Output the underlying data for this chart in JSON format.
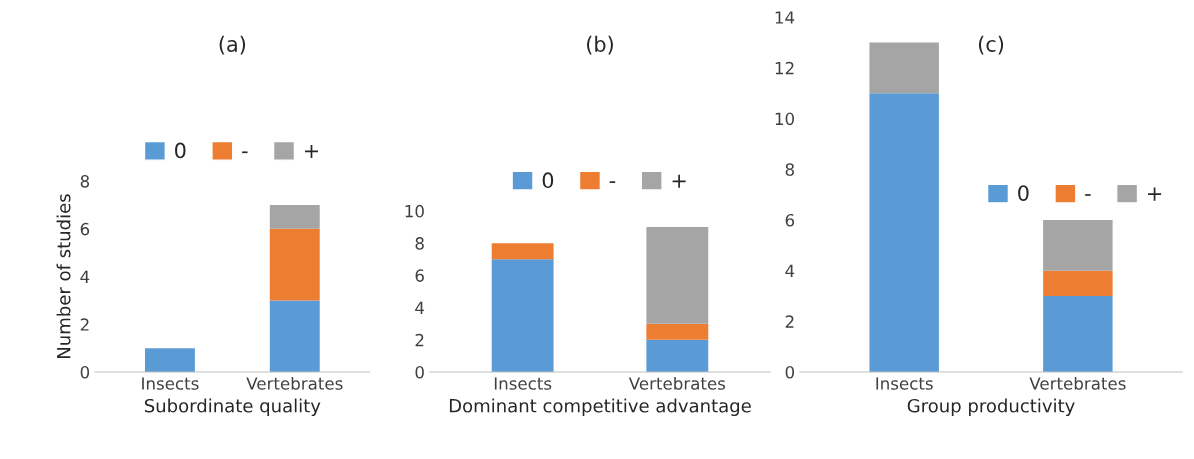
{
  "chart_data": [
    {
      "type": "bar",
      "stacked": true,
      "title": "(a)",
      "xlabel": "Subordinate quality",
      "ylabel": "Number of studies",
      "categories": [
        "Insects",
        "Vertebrates"
      ],
      "ylim": [
        0,
        8
      ],
      "yticks": [
        0,
        2,
        4,
        6,
        8
      ],
      "grid": false,
      "legend": "top",
      "series": [
        {
          "name": "0",
          "color": "#5b9bd5",
          "values": [
            1,
            3
          ]
        },
        {
          "name": "-",
          "color": "#ed7d31",
          "values": [
            0,
            3
          ]
        },
        {
          "name": "+",
          "color": "#a5a5a5",
          "values": [
            0,
            1
          ]
        }
      ]
    },
    {
      "type": "bar",
      "stacked": true,
      "title": "(b)",
      "xlabel": "Dominant competitive advantage",
      "categories": [
        "Insects",
        "Vertebrates"
      ],
      "ylim": [
        0,
        10
      ],
      "yticks": [
        0,
        2,
        4,
        6,
        8,
        10
      ],
      "grid": false,
      "legend": "top",
      "series": [
        {
          "name": "0",
          "color": "#5b9bd5",
          "values": [
            7,
            2
          ]
        },
        {
          "name": "-",
          "color": "#ed7d31",
          "values": [
            1,
            1
          ]
        },
        {
          "name": "+",
          "color": "#a5a5a5",
          "values": [
            0,
            6
          ]
        }
      ]
    },
    {
      "type": "bar",
      "stacked": true,
      "title": "(c)",
      "xlabel": "Group productivity",
      "categories": [
        "Insects",
        "Vertebrates"
      ],
      "ylim": [
        0,
        14
      ],
      "yticks": [
        0,
        2,
        4,
        6,
        8,
        10,
        12,
        14
      ],
      "grid": false,
      "legend": "right",
      "series": [
        {
          "name": "0",
          "color": "#5b9bd5",
          "values": [
            11,
            3
          ]
        },
        {
          "name": "-",
          "color": "#ed7d31",
          "values": [
            0,
            1
          ]
        },
        {
          "name": "+",
          "color": "#a5a5a5",
          "values": [
            2,
            2
          ]
        }
      ]
    }
  ]
}
